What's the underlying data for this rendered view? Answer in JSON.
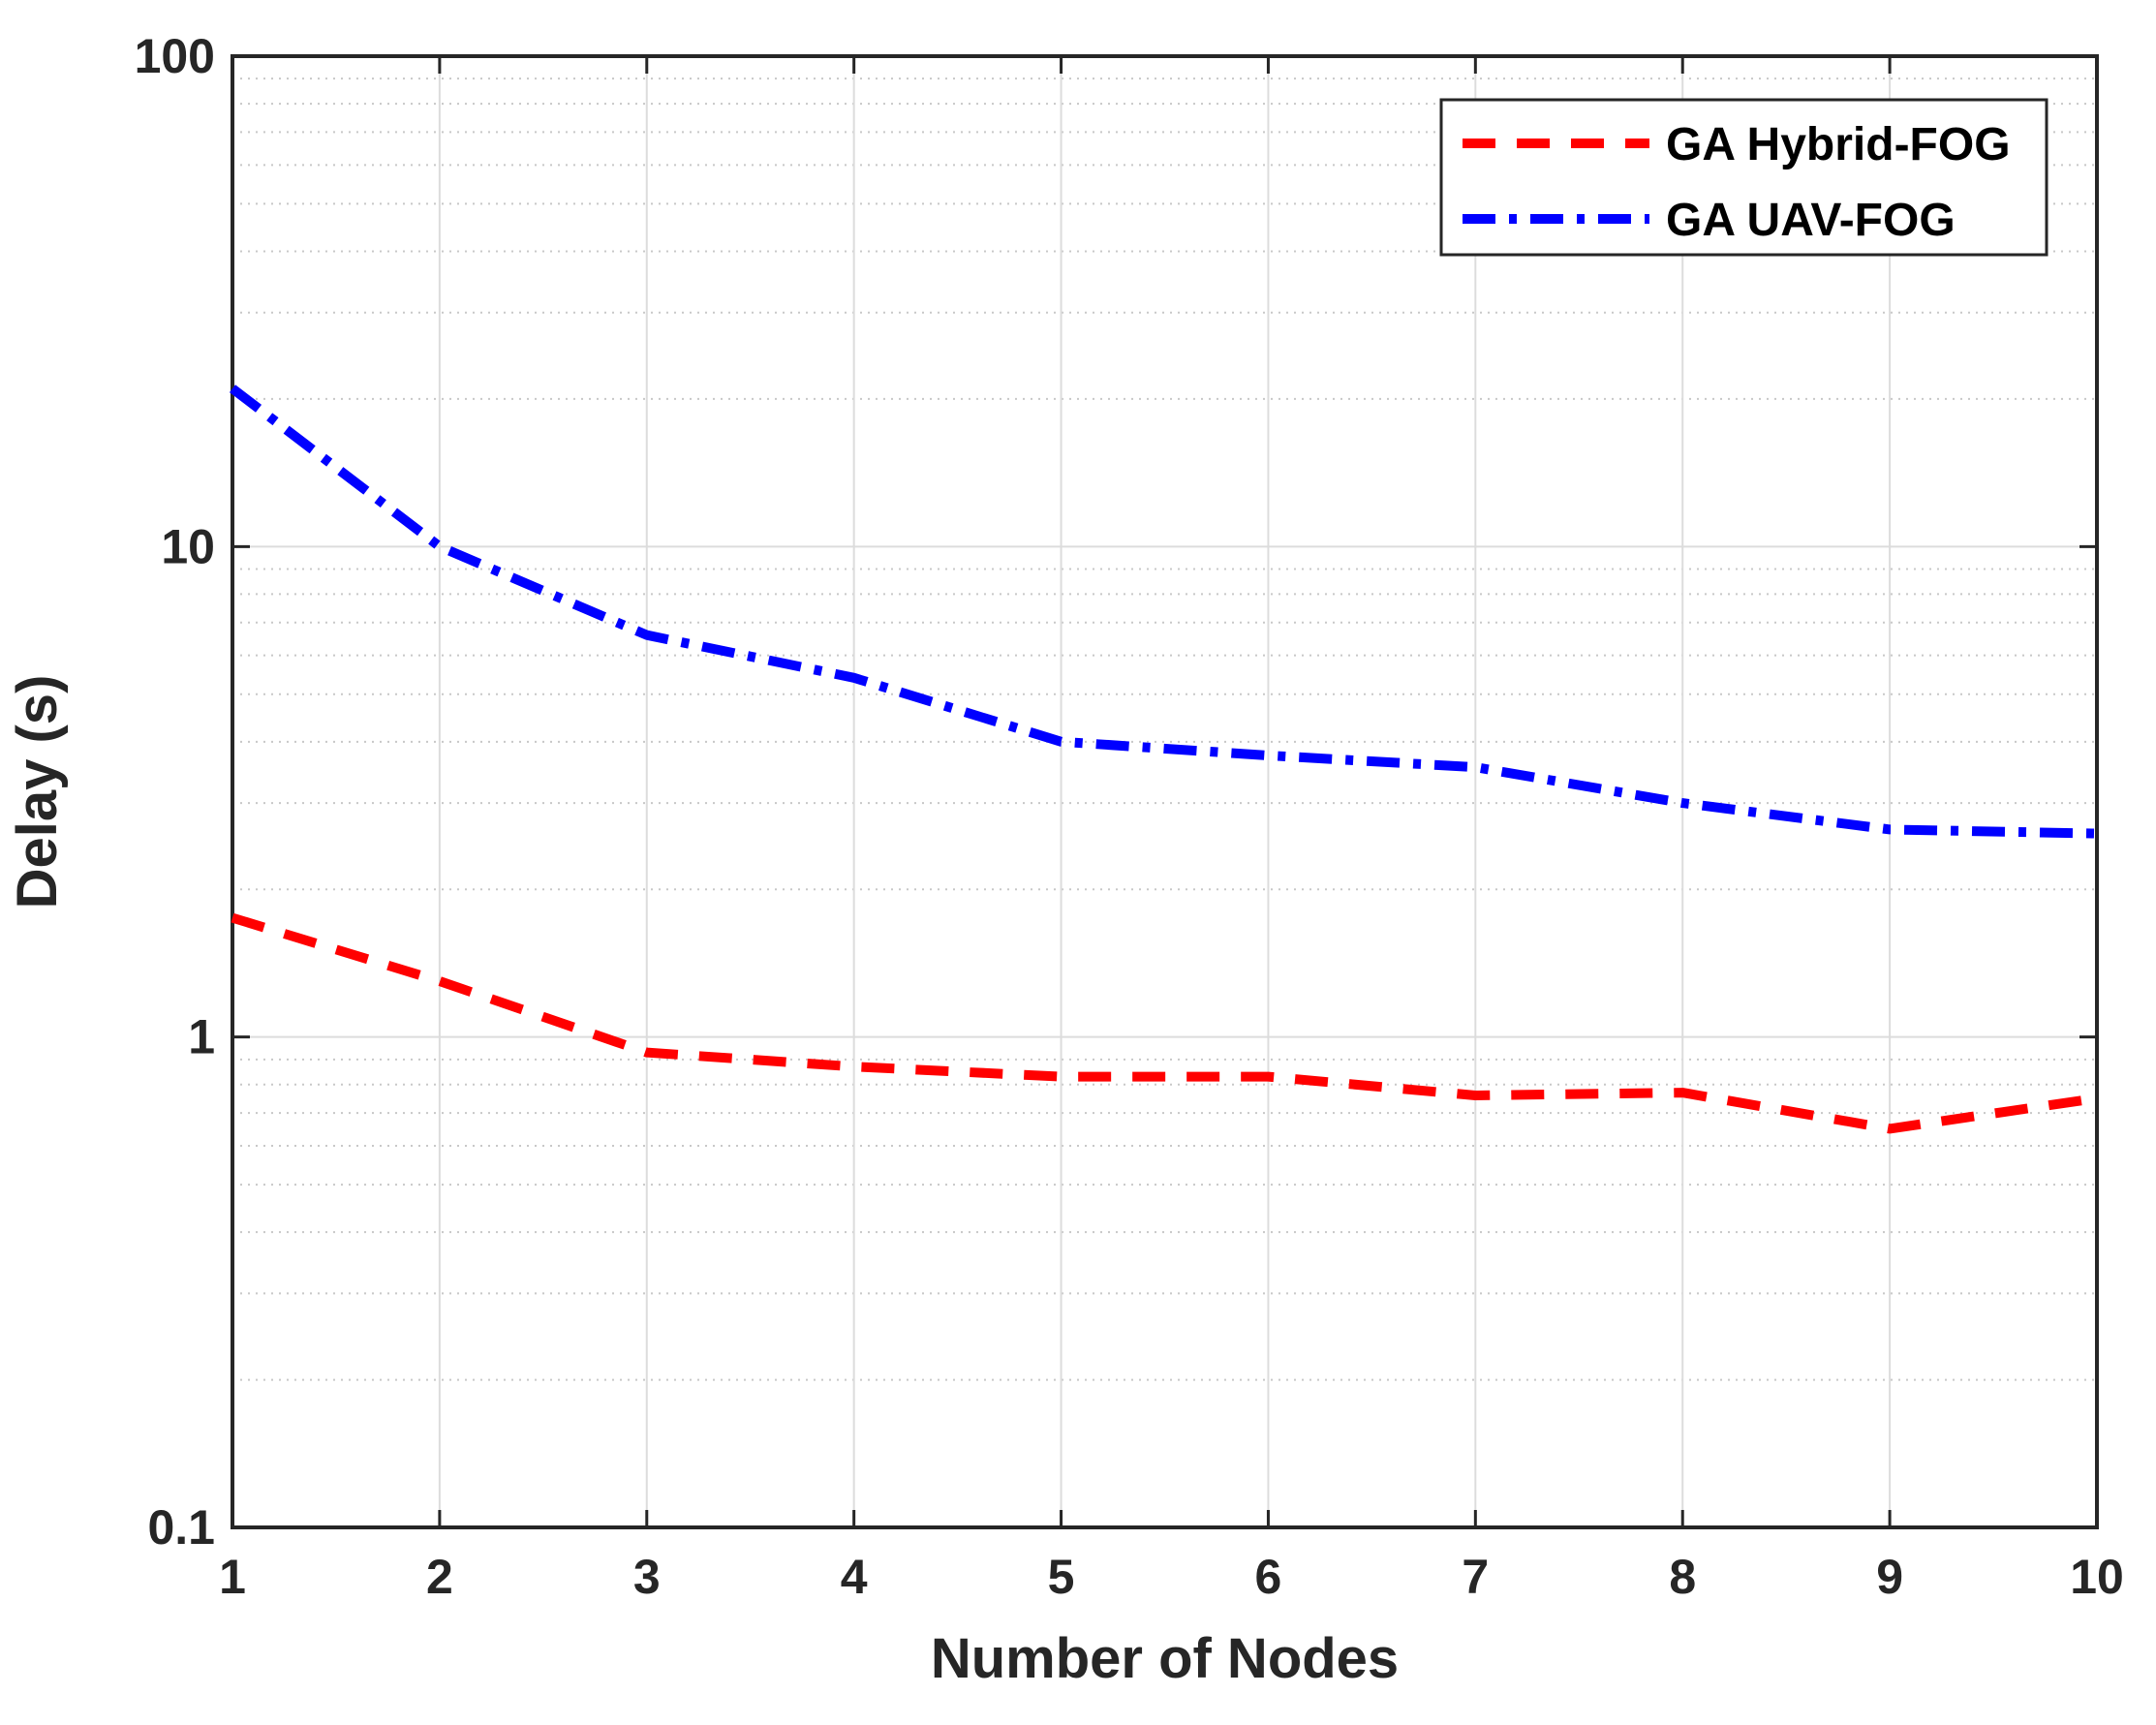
{
  "chart_data": {
    "type": "line",
    "xlabel": "Number of Nodes",
    "ylabel": "Delay (s)",
    "x_scale": "linear",
    "y_scale": "log",
    "xlim": [
      1,
      10
    ],
    "ylim": [
      0.1,
      100
    ],
    "x_ticks": [
      "1",
      "2",
      "3",
      "4",
      "5",
      "6",
      "7",
      "8",
      "9",
      "10"
    ],
    "y_ticks": [
      "0.1",
      "1",
      "10",
      "100"
    ],
    "grid": true,
    "minor_grid": true,
    "legend_position": "top-right",
    "x": [
      1,
      2,
      3,
      4,
      5,
      6,
      7,
      8,
      9,
      10
    ],
    "series": [
      {
        "name": "GA Hybrid-FOG",
        "values": [
          1.75,
          1.3,
          0.93,
          0.87,
          0.83,
          0.83,
          0.76,
          0.77,
          0.65,
          0.75
        ],
        "color": "#ff0000",
        "style": "dashed"
      },
      {
        "name": "GA UAV-FOG",
        "values": [
          21,
          10,
          6.6,
          5.4,
          4.0,
          3.75,
          3.55,
          3.0,
          2.65,
          2.6
        ],
        "color": "#0000ff",
        "style": "dash-dot"
      }
    ]
  }
}
